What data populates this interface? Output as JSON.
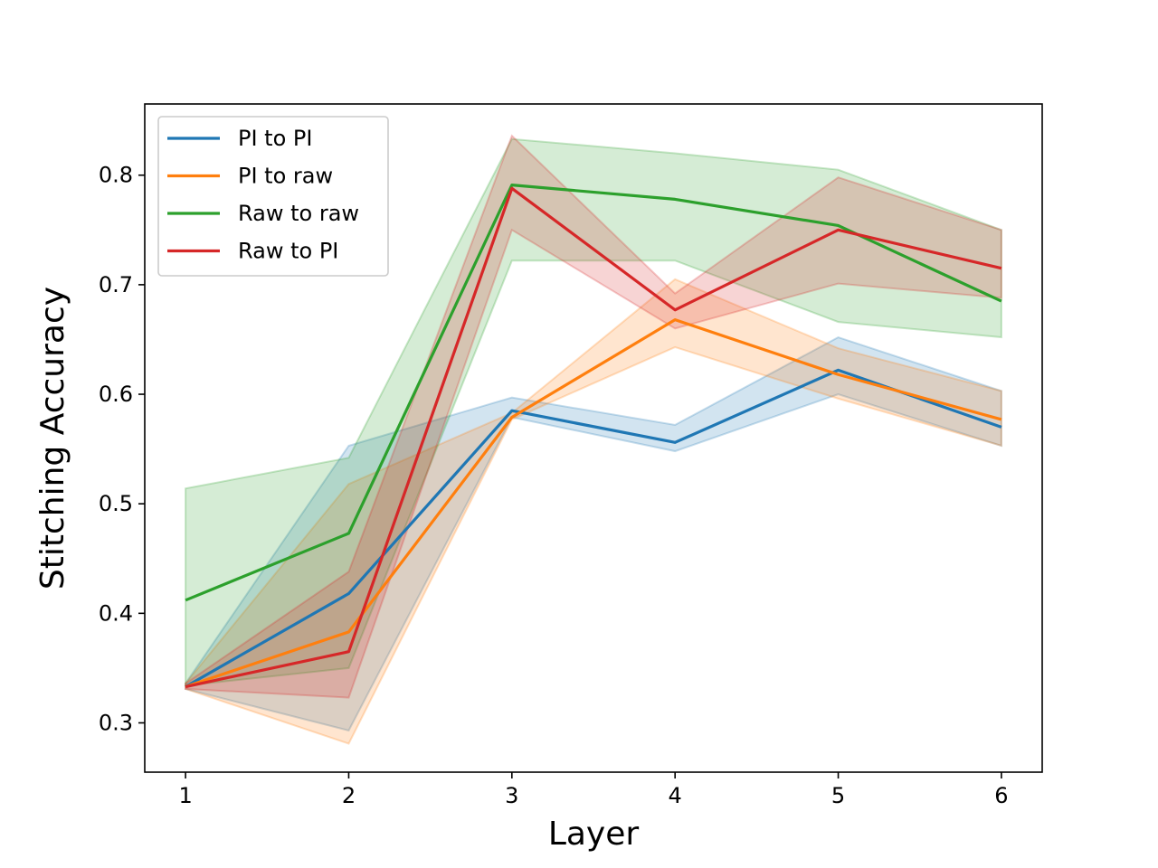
{
  "chart_data": {
    "type": "line",
    "title": "",
    "xlabel": "Layer",
    "ylabel": "Stitching Accuracy",
    "x": [
      1,
      2,
      3,
      4,
      5,
      6
    ],
    "x_tick_labels": [
      "1",
      "2",
      "3",
      "4",
      "5",
      "6"
    ],
    "y_ticks": [
      0.3,
      0.4,
      0.5,
      0.6,
      0.7,
      0.8
    ],
    "y_tick_labels": [
      "0.3",
      "0.4",
      "0.5",
      "0.6",
      "0.7",
      "0.8"
    ],
    "xlim": [
      0.75,
      6.25
    ],
    "ylim": [
      0.255,
      0.865
    ],
    "grid": false,
    "legend_position": "top-left",
    "series": [
      {
        "name": "PI to PI",
        "color": "#1f77b4",
        "values": [
          0.333,
          0.418,
          0.585,
          0.556,
          0.622,
          0.57
        ],
        "upper": [
          0.336,
          0.553,
          0.597,
          0.572,
          0.652,
          0.603
        ],
        "lower": [
          0.331,
          0.293,
          0.579,
          0.548,
          0.6,
          0.553
        ]
      },
      {
        "name": "PI to raw",
        "color": "#ff7f0e",
        "values": [
          0.333,
          0.383,
          0.579,
          0.668,
          0.618,
          0.577
        ],
        "upper": [
          0.336,
          0.518,
          0.583,
          0.705,
          0.642,
          0.603
        ],
        "lower": [
          0.331,
          0.281,
          0.577,
          0.643,
          0.596,
          0.553
        ]
      },
      {
        "name": "Raw to raw",
        "color": "#2ca02c",
        "values": [
          0.412,
          0.473,
          0.791,
          0.778,
          0.754,
          0.685
        ],
        "upper": [
          0.514,
          0.542,
          0.833,
          0.82,
          0.805,
          0.75
        ],
        "lower": [
          0.334,
          0.35,
          0.722,
          0.722,
          0.666,
          0.652
        ]
      },
      {
        "name": "Raw to PI",
        "color": "#d62728",
        "values": [
          0.333,
          0.365,
          0.788,
          0.677,
          0.75,
          0.715
        ],
        "upper": [
          0.336,
          0.438,
          0.836,
          0.692,
          0.798,
          0.75
        ],
        "lower": [
          0.331,
          0.323,
          0.75,
          0.66,
          0.701,
          0.688
        ]
      }
    ]
  }
}
